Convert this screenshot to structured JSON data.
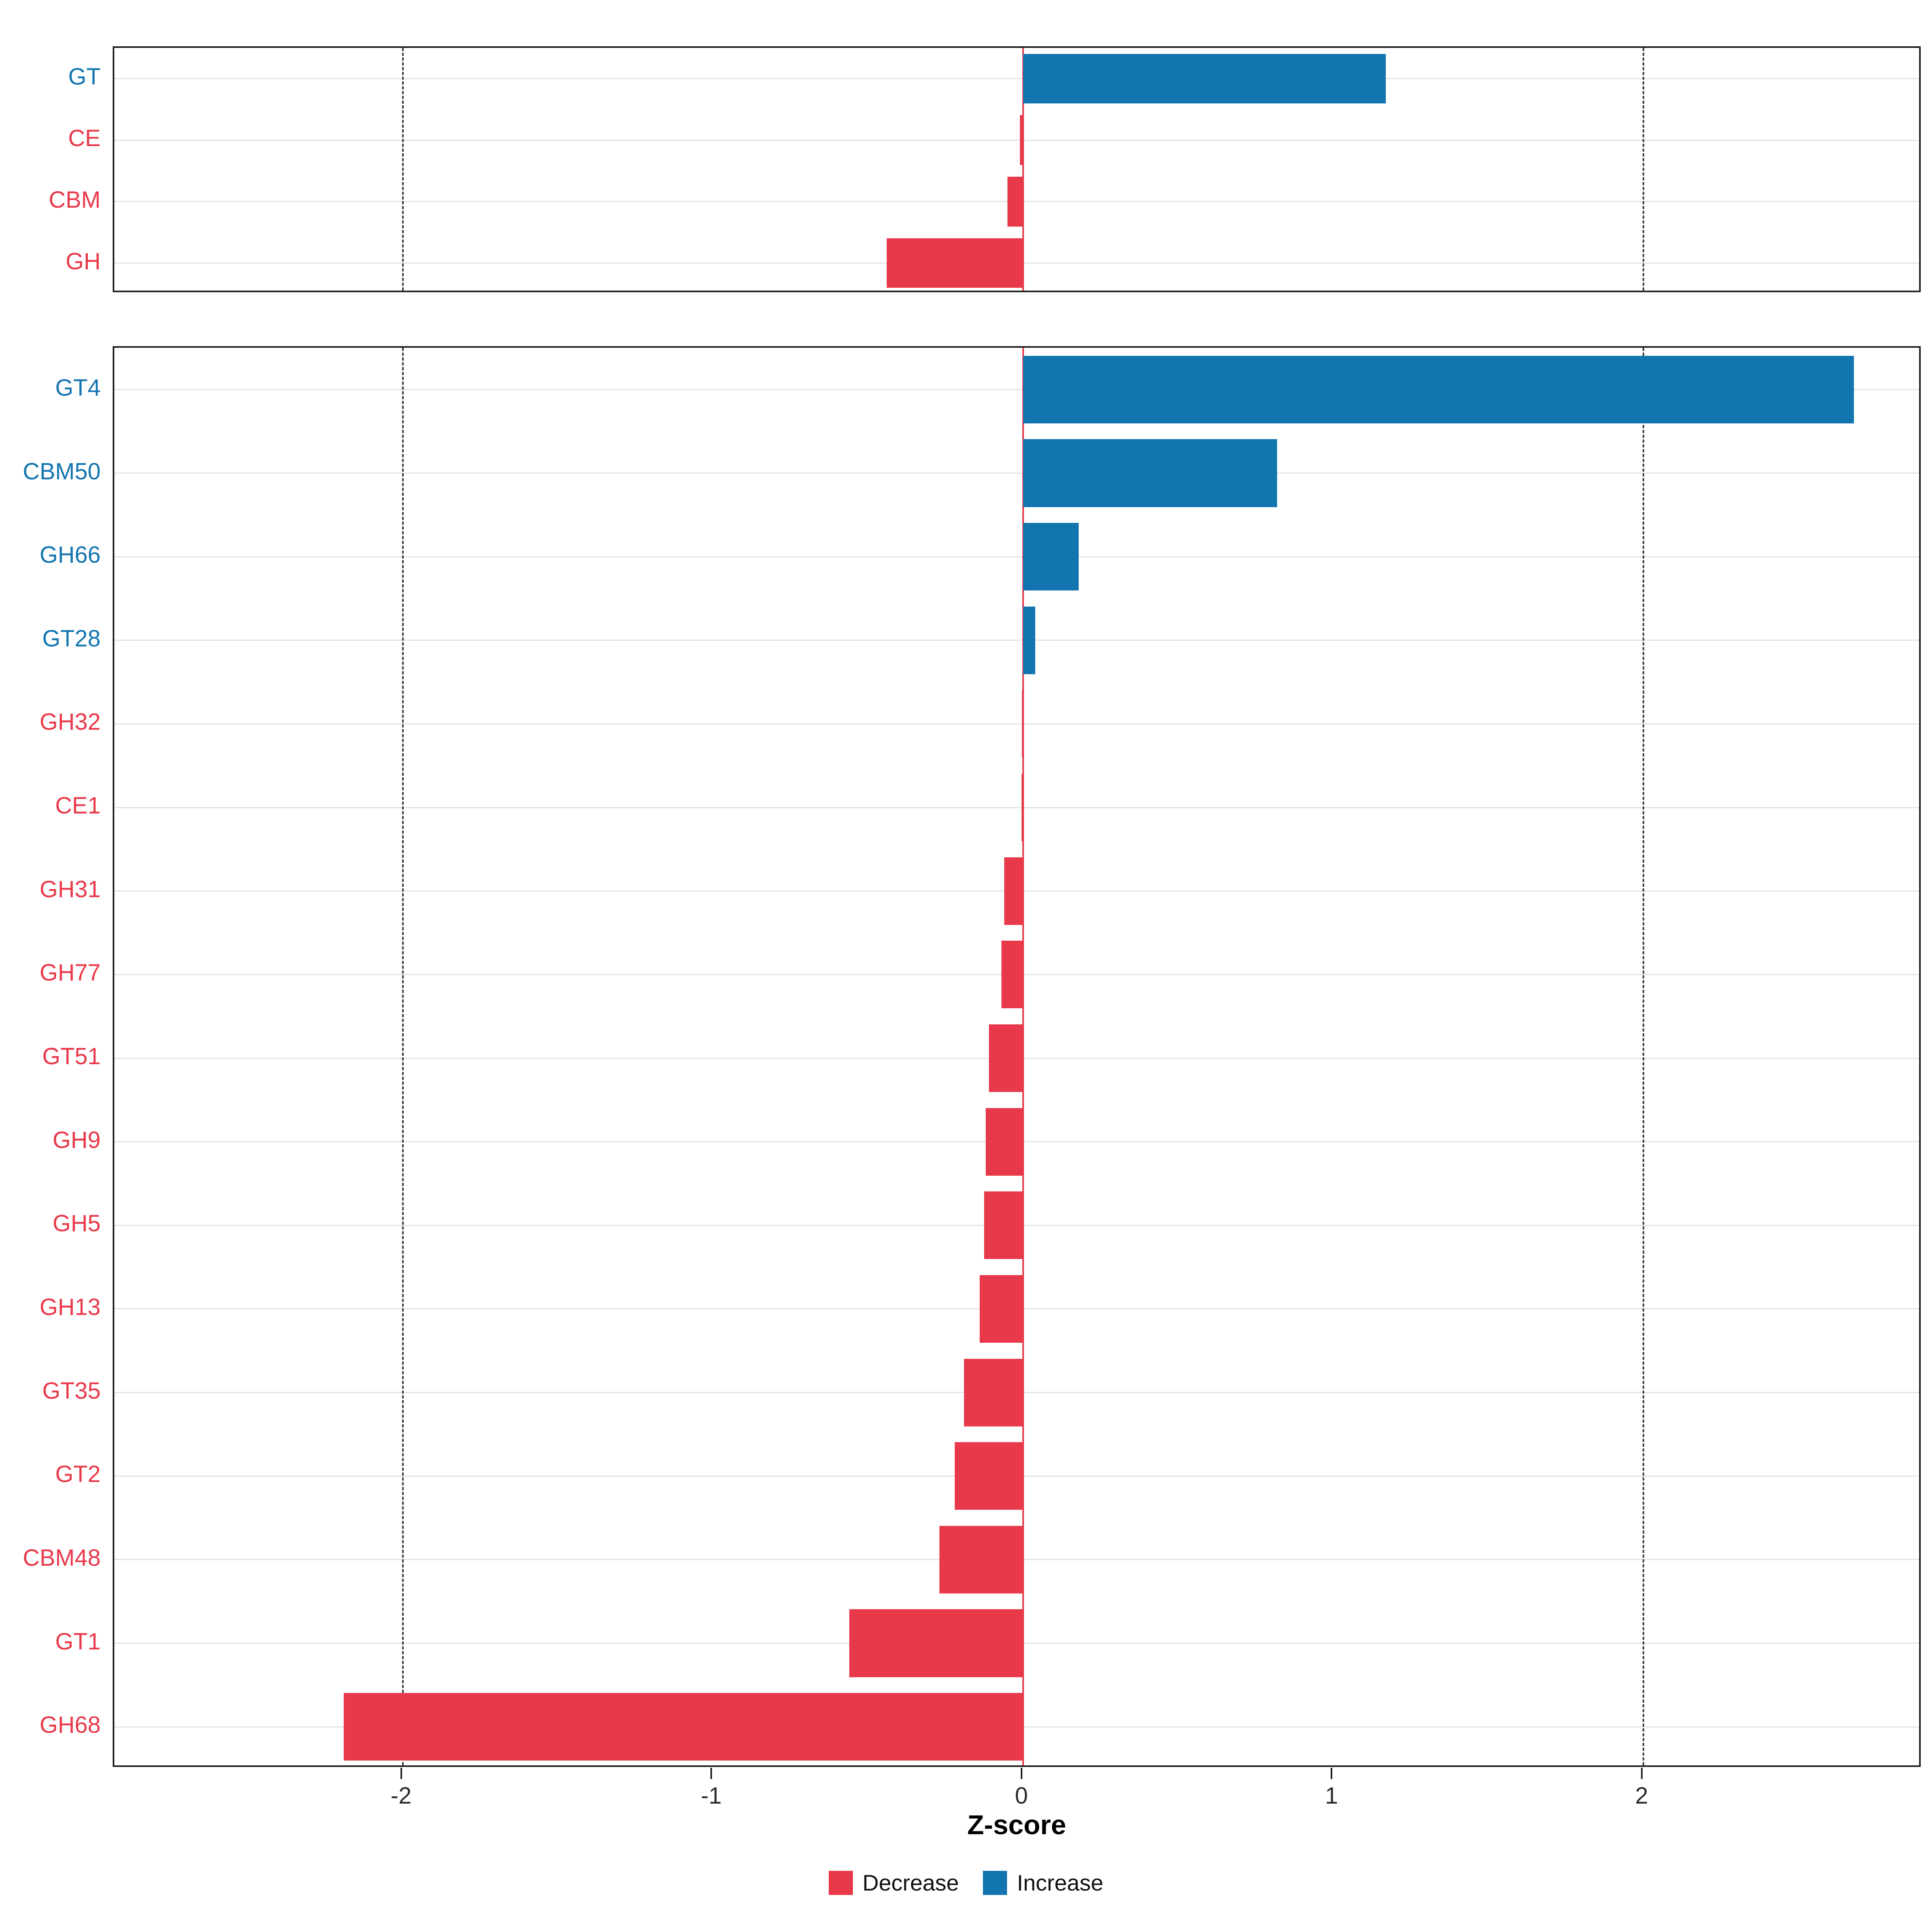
{
  "chart_data": {
    "type": "bar",
    "orientation": "horizontal",
    "title": "",
    "xlabel": "Z-score",
    "ylabel": "",
    "xlim": [
      -2.93,
      2.9
    ],
    "grid": "dashed vertical at -2 and 2, light horizontal per category, red line at 0",
    "x_ticks": [
      {
        "v": -2,
        "label": "-2"
      },
      {
        "v": -1,
        "label": "-1"
      },
      {
        "v": 0,
        "label": "0"
      },
      {
        "v": 1,
        "label": "1"
      },
      {
        "v": 2,
        "label": "2"
      }
    ],
    "grid_dashed_x": [
      -2,
      2
    ],
    "zero_line_x": 0,
    "colors": {
      "decrease": "#e8394a",
      "increase": "#1375b0"
    },
    "legend": [
      {
        "label": "Decrease",
        "color": "#e8394a"
      },
      {
        "label": "Increase",
        "color": "#1375b0"
      }
    ],
    "legend_position": "bottom",
    "panels": [
      {
        "name": "families",
        "categories": [
          "GT",
          "CE",
          "CBM",
          "GH"
        ],
        "values": [
          1.17,
          -0.01,
          -0.05,
          -0.44
        ]
      },
      {
        "name": "subfamilies",
        "categories": [
          "GT4",
          "CBM50",
          "GH66",
          "GT28",
          "GH32",
          "CE1",
          "GH31",
          "GH77",
          "GT51",
          "GH9",
          "GH5",
          "GH13",
          "GT35",
          "GT2",
          "CBM48",
          "GT1",
          "GH68"
        ],
        "values": [
          2.68,
          0.82,
          0.18,
          0.04,
          -0.003,
          -0.005,
          -0.06,
          -0.07,
          -0.11,
          -0.12,
          -0.125,
          -0.14,
          -0.19,
          -0.22,
          -0.27,
          -0.56,
          -2.19
        ]
      }
    ]
  }
}
